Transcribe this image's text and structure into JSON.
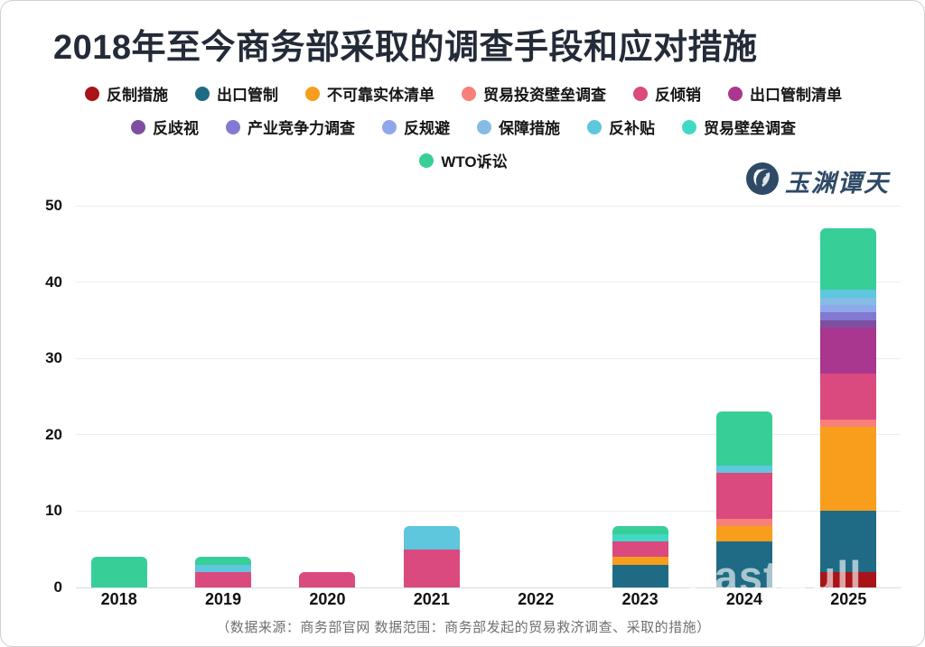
{
  "title": "2018年至今商务部采取的调查手段和应对措施",
  "footer_note": "（数据来源：商务部官网 数据范围：商务部发起的贸易救济调查、采取的措施）",
  "logo": {
    "name": "玉渊谭天"
  },
  "watermark": "FastBull",
  "colors": {
    "title": "#242B38",
    "axis_label": "#111111",
    "footer": "#6F6F6F",
    "grid": "#EDEDED",
    "baseline": "#DBDBDB",
    "logo": "#2E4A66"
  },
  "legend_rows": [
    [
      0,
      1,
      2,
      3,
      4,
      5
    ],
    [
      6,
      7,
      8,
      9,
      10,
      11
    ],
    [
      12
    ]
  ],
  "chart_data": {
    "type": "bar",
    "stacked": true,
    "title": "2018年至今商务部采取的调查手段和应对措施",
    "categories": [
      "2018",
      "2019",
      "2020",
      "2021",
      "2022",
      "2023",
      "2024",
      "2025"
    ],
    "series": [
      {
        "name": "反制措施",
        "color": "#A81418",
        "values": [
          0,
          0,
          0,
          0,
          0,
          0,
          0,
          2
        ]
      },
      {
        "name": "出口管制",
        "color": "#1F6B85",
        "values": [
          0,
          0,
          0,
          0,
          0,
          3,
          6,
          8
        ]
      },
      {
        "name": "不可靠实体清单",
        "color": "#F99D1C",
        "values": [
          0,
          0,
          0,
          0,
          0,
          1,
          2,
          11
        ]
      },
      {
        "name": "贸易投资壁垒调查",
        "color": "#F8807A",
        "values": [
          0,
          0,
          0,
          0,
          0,
          0,
          1,
          1
        ]
      },
      {
        "name": "反倾销",
        "color": "#DA4A7E",
        "values": [
          0,
          2,
          2,
          5,
          0,
          2,
          6,
          6
        ]
      },
      {
        "name": "出口管制清单",
        "color": "#A93790",
        "values": [
          0,
          0,
          0,
          0,
          0,
          0,
          0,
          6
        ]
      },
      {
        "name": "反歧视",
        "color": "#7E4FA0",
        "values": [
          0,
          0,
          0,
          0,
          0,
          0,
          0,
          1
        ]
      },
      {
        "name": "产业竞争力调查",
        "color": "#8379D2",
        "values": [
          0,
          0,
          0,
          0,
          0,
          0,
          0,
          1
        ]
      },
      {
        "name": "反规避",
        "color": "#8FA8EA",
        "values": [
          0,
          0,
          0,
          0,
          0,
          0,
          0,
          1
        ]
      },
      {
        "name": "保障措施",
        "color": "#85BCE6",
        "values": [
          0,
          0,
          0,
          0,
          0,
          0,
          0,
          1
        ]
      },
      {
        "name": "反补贴",
        "color": "#5EC6DD",
        "values": [
          0,
          1,
          0,
          3,
          0,
          0,
          1,
          1
        ]
      },
      {
        "name": "贸易壁垒调查",
        "color": "#40D9C4",
        "values": [
          0,
          0,
          0,
          0,
          0,
          1,
          0,
          0
        ]
      },
      {
        "name": "WTO诉讼",
        "color": "#38CE98",
        "values": [
          4,
          1,
          0,
          0,
          0,
          1,
          7,
          8
        ]
      }
    ],
    "totals": [
      4,
      4,
      2,
      8,
      0,
      8,
      23,
      47
    ],
    "ylim": [
      0,
      50
    ],
    "yticks": [
      0,
      10,
      20,
      30,
      40,
      50
    ],
    "grid": true,
    "legend_position": "top"
  }
}
